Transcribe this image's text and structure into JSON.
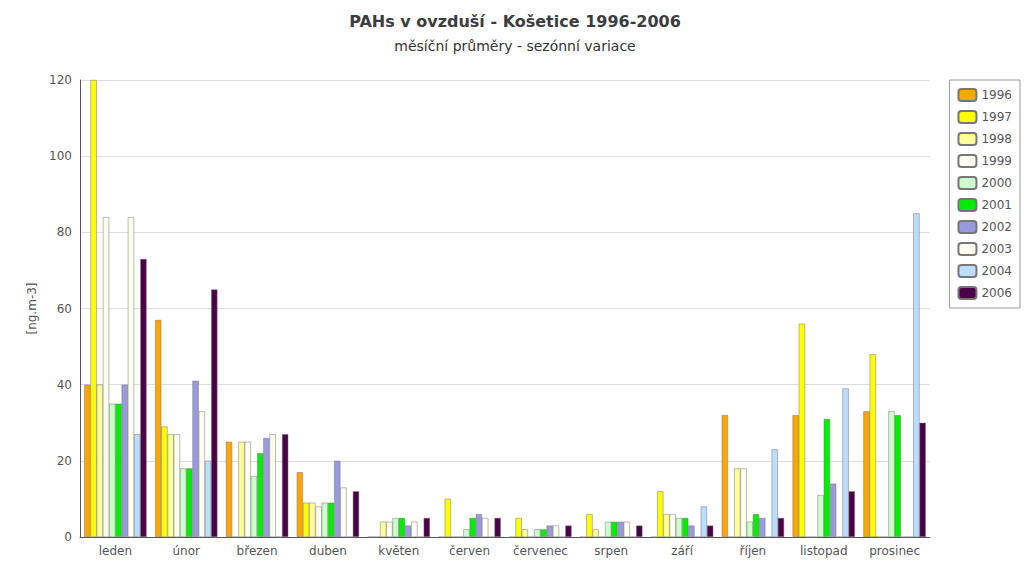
{
  "chart_data": {
    "type": "bar",
    "title": "PAHs v ovzduší - Košetice 1996-2006",
    "subtitle": "měsíční průměry - sezónní variace",
    "y_label": "[ng.m-3]",
    "categories": [
      "leden",
      "únor",
      "březen",
      "duben",
      "květen",
      "červen",
      "červenec",
      "srpen",
      "září",
      "říjen",
      "listopad",
      "prosinec"
    ],
    "series": [
      {
        "name": "1996",
        "color": "#FFA500",
        "values": [
          40,
          57,
          25,
          17,
          0,
          0,
          0,
          0,
          0,
          32,
          32,
          33
        ]
      },
      {
        "name": "1997",
        "color": "#FFFF00",
        "values": [
          120,
          29,
          0,
          9,
          0,
          10,
          5,
          6,
          12,
          0,
          56,
          48
        ]
      },
      {
        "name": "1998",
        "color": "#FFFF99",
        "values": [
          40,
          27,
          25,
          9,
          4,
          0,
          2,
          2,
          6,
          18,
          0,
          0
        ]
      },
      {
        "name": "1999",
        "color": "#FFFFF0",
        "values": [
          84,
          27,
          25,
          8,
          4,
          0,
          0,
          0,
          6,
          18,
          0,
          0
        ]
      },
      {
        "name": "2000",
        "color": "#CCFFCC",
        "values": [
          35,
          18,
          16,
          9,
          5,
          2,
          2,
          4,
          5,
          4,
          11,
          33
        ]
      },
      {
        "name": "2001",
        "color": "#00EE00",
        "values": [
          35,
          18,
          22,
          9,
          5,
          5,
          2,
          4,
          5,
          6,
          31,
          32
        ]
      },
      {
        "name": "2002",
        "color": "#9999DD",
        "values": [
          40,
          41,
          26,
          20,
          3,
          6,
          3,
          4,
          3,
          5,
          14,
          0
        ]
      },
      {
        "name": "2003",
        "color": "#FFFFF0",
        "values": [
          84,
          33,
          27,
          13,
          4,
          5,
          3,
          4,
          0,
          0,
          0,
          0
        ]
      },
      {
        "name": "2004",
        "color": "#BBDDFF",
        "values": [
          27,
          20,
          0,
          0,
          0,
          0,
          0,
          0,
          8,
          23,
          39,
          85
        ]
      },
      {
        "name": "2006",
        "color": "#4B0048",
        "values": [
          73,
          65,
          27,
          12,
          5,
          5,
          3,
          3,
          3,
          5,
          12,
          30
        ]
      }
    ],
    "ylim": [
      0,
      120
    ],
    "yticks": [
      0,
      20,
      40,
      60,
      80,
      100,
      120
    ],
    "grid": true,
    "legend": "upper right"
  }
}
